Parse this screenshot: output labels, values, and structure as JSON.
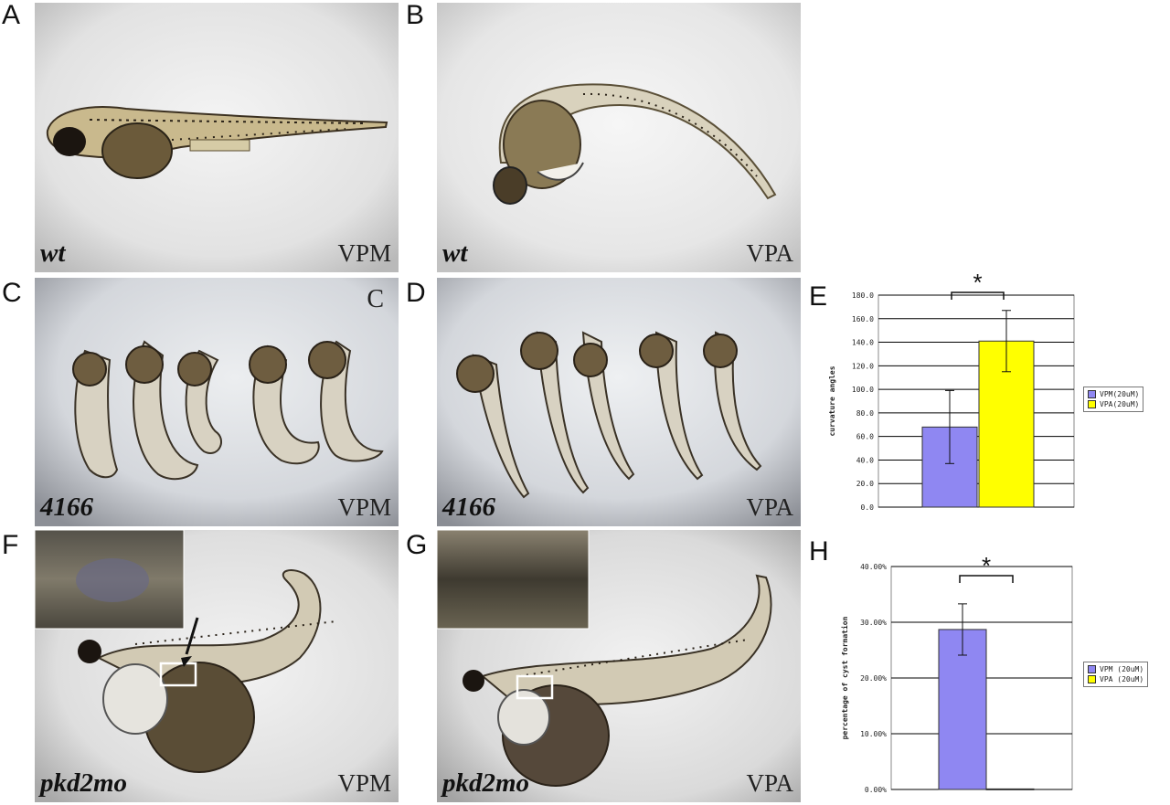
{
  "panels": {
    "A": {
      "label": "A",
      "left_text": "wt",
      "right_text": "VPM"
    },
    "B": {
      "label": "B",
      "left_text": "wt",
      "right_text": "VPA"
    },
    "C": {
      "label": "C",
      "left_text": "4166",
      "right_text": "VPM",
      "corner_text": "C"
    },
    "D": {
      "label": "D",
      "left_text": "4166",
      "right_text": "VPA"
    },
    "F": {
      "label": "F",
      "left_text": "pkd2mo",
      "right_text": "VPM"
    },
    "G": {
      "label": "G",
      "left_text": "pkd2mo",
      "right_text": "VPA"
    }
  },
  "chart_data": [
    {
      "panel_label": "E",
      "type": "bar",
      "categories": [
        "VPM(20uM)",
        "VPA(20uM)"
      ],
      "values": [
        68.0,
        141.0
      ],
      "errors": [
        31.0,
        26.0
      ],
      "colors": [
        "#8f87f2",
        "#ffff00"
      ],
      "ylabel": "curvature angles",
      "ylim": [
        0,
        180
      ],
      "yticks": [
        "0.0",
        "20.0",
        "40.0",
        "60.0",
        "80.0",
        "100.0",
        "120.0",
        "140.0",
        "160.0",
        "180.0"
      ],
      "significance": "*",
      "grid": true,
      "legend": [
        "VPM(20uM)",
        "VPA(20uM)"
      ],
      "legend_position": "right"
    },
    {
      "panel_label": "H",
      "type": "bar",
      "categories": [
        "VPM (20uM)",
        "VPA (20uM)"
      ],
      "values": [
        28.7,
        0.1
      ],
      "errors": [
        4.6,
        0.0
      ],
      "colors": [
        "#8f87f2",
        "#ffff00"
      ],
      "ylabel": "percentage of cyst formation",
      "ylim": [
        0,
        40
      ],
      "yticks": [
        "0.00%",
        "10.00%",
        "20.00%",
        "30.00%",
        "40.00%"
      ],
      "significance": "*",
      "grid": true,
      "legend": [
        "VPM (20uM)",
        "VPA (20uM)"
      ],
      "legend_position": "right"
    }
  ]
}
